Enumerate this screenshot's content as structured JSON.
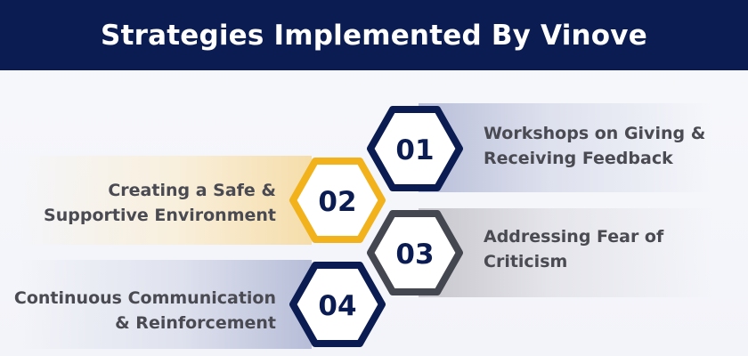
{
  "title": "Strategies Implemented By Vinove",
  "steps": [
    {
      "number": "01",
      "line1": "Workshops on Giving &",
      "line2": "Receiving Feedback",
      "color": "#0b1c52"
    },
    {
      "number": "02",
      "line1": "Creating a Safe &",
      "line2": "Supportive Environment",
      "color": "#f2b21b"
    },
    {
      "number": "03",
      "line1": "Addressing Fear of",
      "line2": "Criticism",
      "color": "#444650"
    },
    {
      "number": "04",
      "line1": "Continuous Communication",
      "line2": "& Reinforcement",
      "color": "#0b1c52"
    }
  ]
}
